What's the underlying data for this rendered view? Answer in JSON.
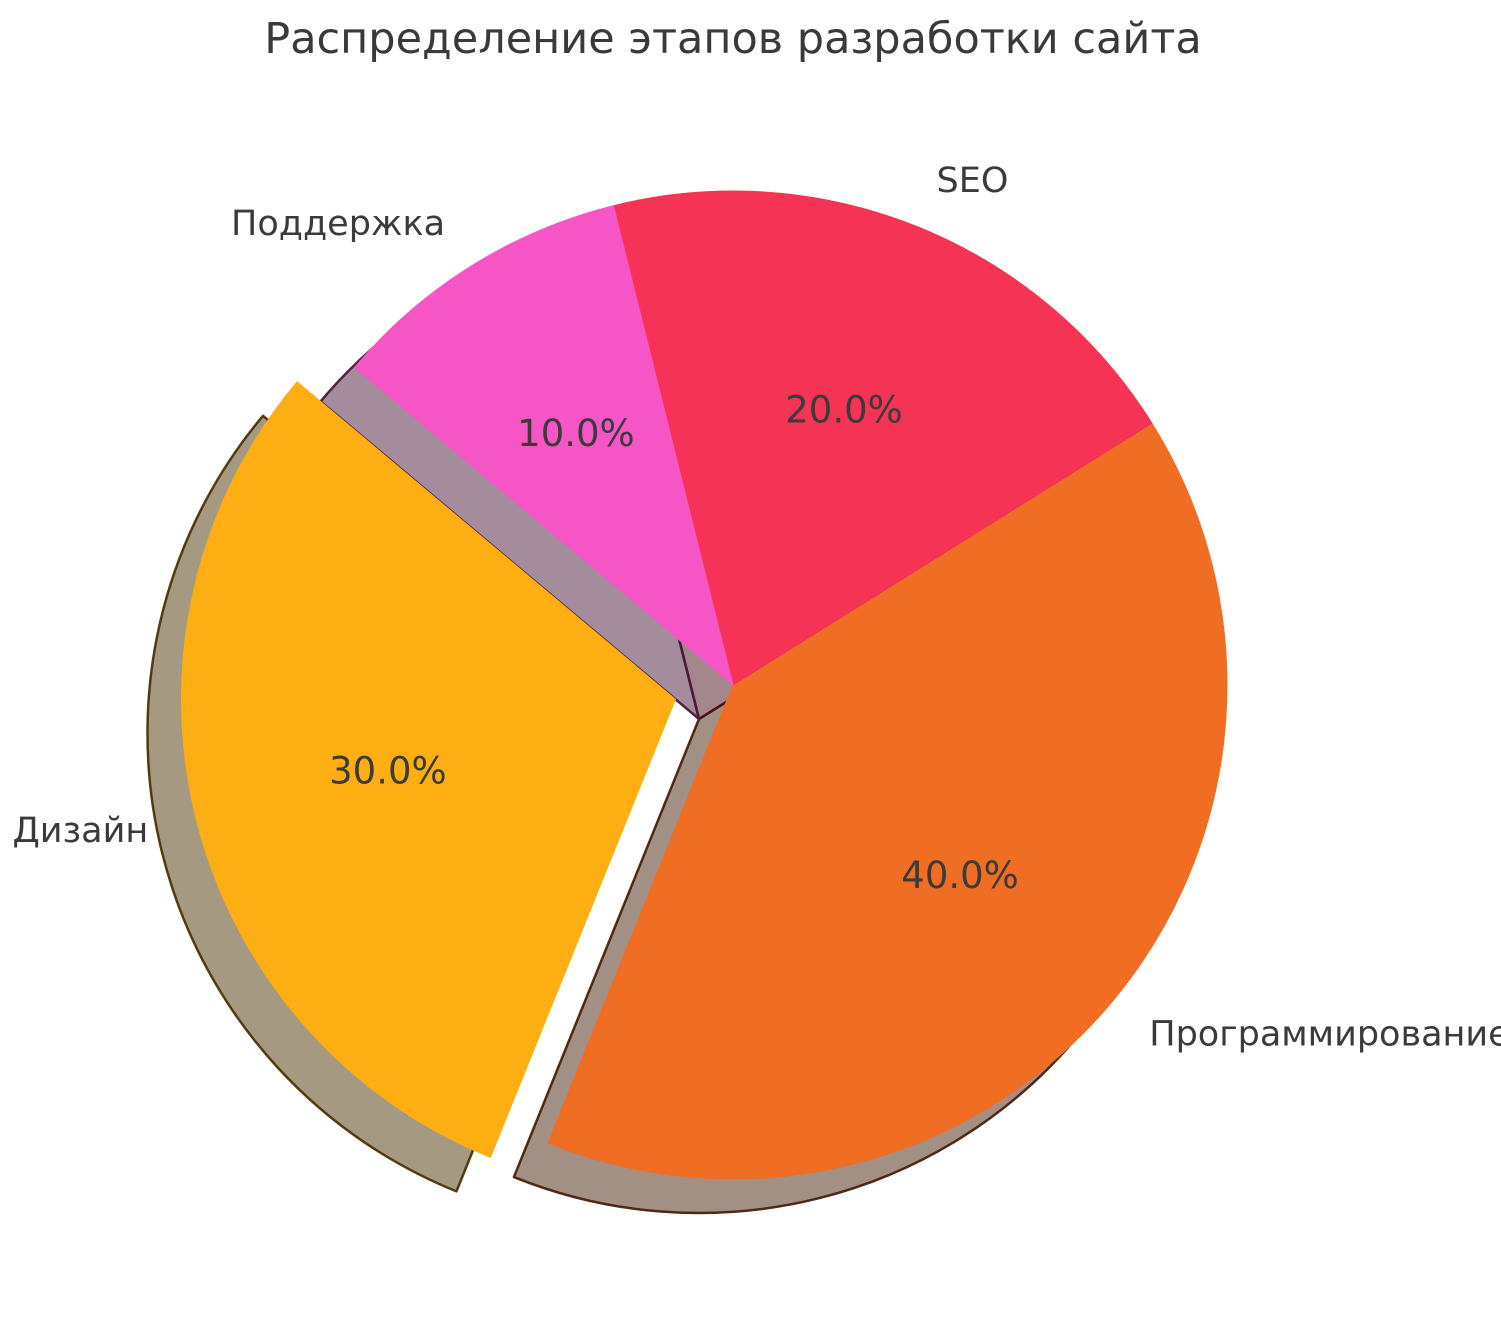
{
  "title": "Распределение этапов разработки сайта",
  "chart_data": {
    "type": "pie",
    "title": "Распределение этапов разработки сайта",
    "startangle": 140,
    "counterclock": true,
    "shadow": true,
    "labeldistance": 1.1,
    "pctdistance": 0.6,
    "background": "#ffffff",
    "text_color": "#3b3b3b",
    "title_color": "#3a3a3a",
    "slices": [
      {
        "slug": "design",
        "label": "Дизайн",
        "value": 30,
        "pct_label": "30.0%",
        "color": "#FCAE13",
        "explode": 0.12
      },
      {
        "slug": "programming",
        "label": "Программирование",
        "value": 40,
        "pct_label": "40.0%",
        "color": "#F06D24",
        "explode": 0
      },
      {
        "slug": "seo",
        "label": "SEO",
        "value": 20,
        "pct_label": "20.0%",
        "color": "#F43355",
        "explode": 0
      },
      {
        "slug": "support",
        "label": "Поддержка",
        "value": 10,
        "pct_label": "10.0%",
        "color": "#F655C6",
        "explode": 0
      }
    ]
  }
}
